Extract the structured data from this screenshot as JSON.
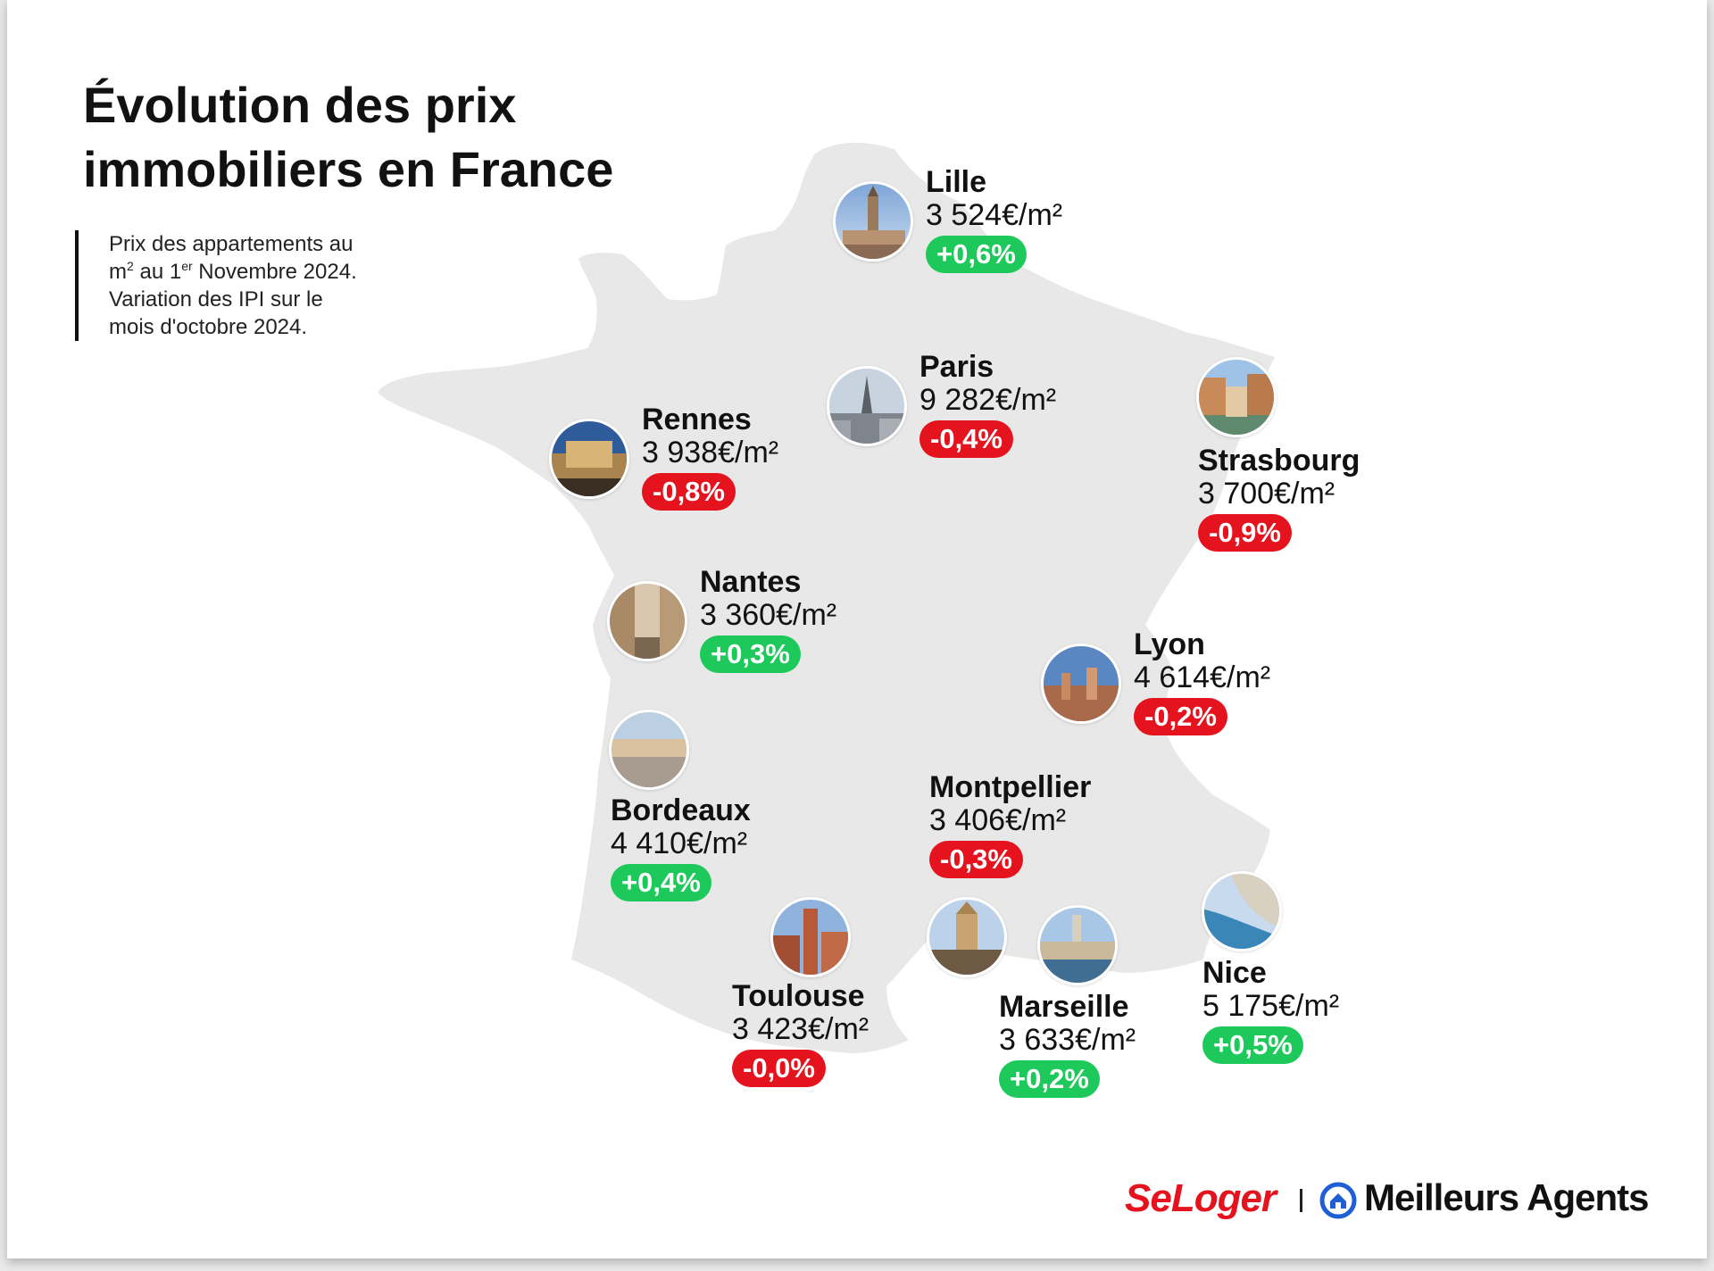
{
  "title_lines": [
    "Évolution des prix",
    "immobiliers en France"
  ],
  "subtitle": {
    "line1": "Prix des appartements au",
    "line2_pre": "m",
    "line2_sup1": "2",
    "line2_mid": " au 1",
    "line2_sup2": "er",
    "line2_post": " Novembre 2024.",
    "line3": "Variation des IPI sur le",
    "line4": "mois d'octobre 2024."
  },
  "colors": {
    "increase": "#1ec95b",
    "decrease": "#e4131d",
    "map_fill": "#e8e8e8",
    "seloger_red": "#e4131d"
  },
  "cities": [
    {
      "key": "lille",
      "name": "Lille",
      "price": "3 524€/m²",
      "variation": "+0,6%",
      "direction": "up",
      "photo_icon": "lille-belfry-photo"
    },
    {
      "key": "paris",
      "name": "Paris",
      "price": "9 282€/m²",
      "variation": "-0,4%",
      "direction": "down",
      "photo_icon": "paris-eiffel-tower-photo"
    },
    {
      "key": "strasbourg",
      "name": "Strasbourg",
      "price": "3 700€/m²",
      "variation": "-0,9%",
      "direction": "down",
      "photo_icon": "strasbourg-canal-photo"
    },
    {
      "key": "rennes",
      "name": "Rennes",
      "price": "3 938€/m²",
      "variation": "-0,8%",
      "direction": "down",
      "photo_icon": "rennes-carousel-photo"
    },
    {
      "key": "nantes",
      "name": "Nantes",
      "price": "3 360€/m²",
      "variation": "+0,3%",
      "direction": "up",
      "photo_icon": "nantes-street-photo"
    },
    {
      "key": "lyon",
      "name": "Lyon",
      "price": "4 614€/m²",
      "variation": "-0,2%",
      "direction": "down",
      "photo_icon": "lyon-skyline-photo"
    },
    {
      "key": "bordeaux",
      "name": "Bordeaux",
      "price": "4 410€/m²",
      "variation": "+0,4%",
      "direction": "up",
      "photo_icon": "bordeaux-riverfront-photo"
    },
    {
      "key": "montpellier",
      "name": "Montpellier",
      "price": "3 406€/m²",
      "variation": "-0,3%",
      "direction": "down",
      "photo_icon": "montpellier-cathedral-photo"
    },
    {
      "key": "toulouse",
      "name": "Toulouse",
      "price": "3 423€/m²",
      "variation": "-0,0%",
      "direction": "down",
      "photo_icon": "toulouse-street-photo"
    },
    {
      "key": "marseille",
      "name": "Marseille",
      "price": "3 633€/m²",
      "variation": "+0,2%",
      "direction": "up",
      "photo_icon": "marseille-harbour-photo"
    },
    {
      "key": "nice",
      "name": "Nice",
      "price": "5 175€/m²",
      "variation": "+0,5%",
      "direction": "up",
      "photo_icon": "nice-promenade-photo"
    }
  ],
  "logos": {
    "seloger": "SeLoger",
    "meilleurs_agents": "Meilleurs Agents",
    "meilleurs_agents_icon": "house-circle-icon"
  }
}
